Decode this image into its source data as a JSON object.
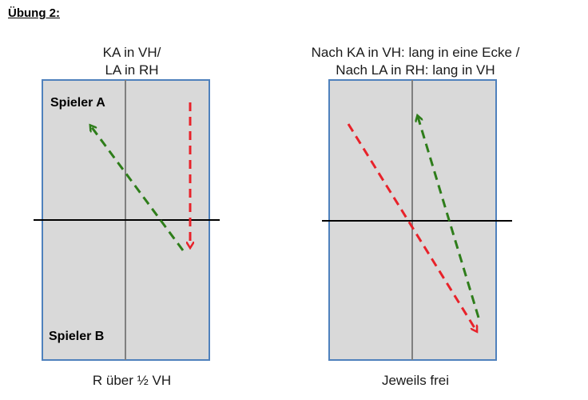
{
  "title": "Übung 2:",
  "left_diagram": {
    "caption_top": [
      "KA in VH/",
      "LA in RH"
    ],
    "caption_bottom": "R über ½ VH",
    "player_top": "Spieler A",
    "player_bottom": "Spieler B"
  },
  "right_diagram": {
    "caption_top": [
      "Nach KA in VH: lang in eine Ecke /",
      "Nach LA in RH: lang in VH"
    ],
    "caption_bottom": "Jeweils frei"
  },
  "colors": {
    "table_fill": "#d9d9d9",
    "table_border": "#4f81bd",
    "center_line": "#808080",
    "net_line": "#000000",
    "arrow_red": "#e8222a",
    "arrow_green": "#2e7d1a"
  }
}
